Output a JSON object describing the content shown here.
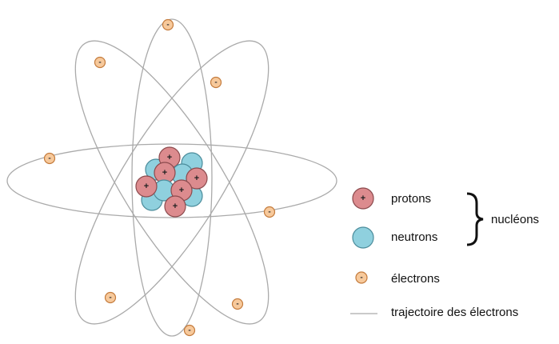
{
  "diagram": {
    "symbols": {
      "proton": "+",
      "electron": "-"
    },
    "legend": {
      "protons": "protons",
      "neutrons": "neutrons",
      "nucleons": "nucléons",
      "electrons": "électrons",
      "trajectory": "trajectoire des électrons"
    }
  }
}
